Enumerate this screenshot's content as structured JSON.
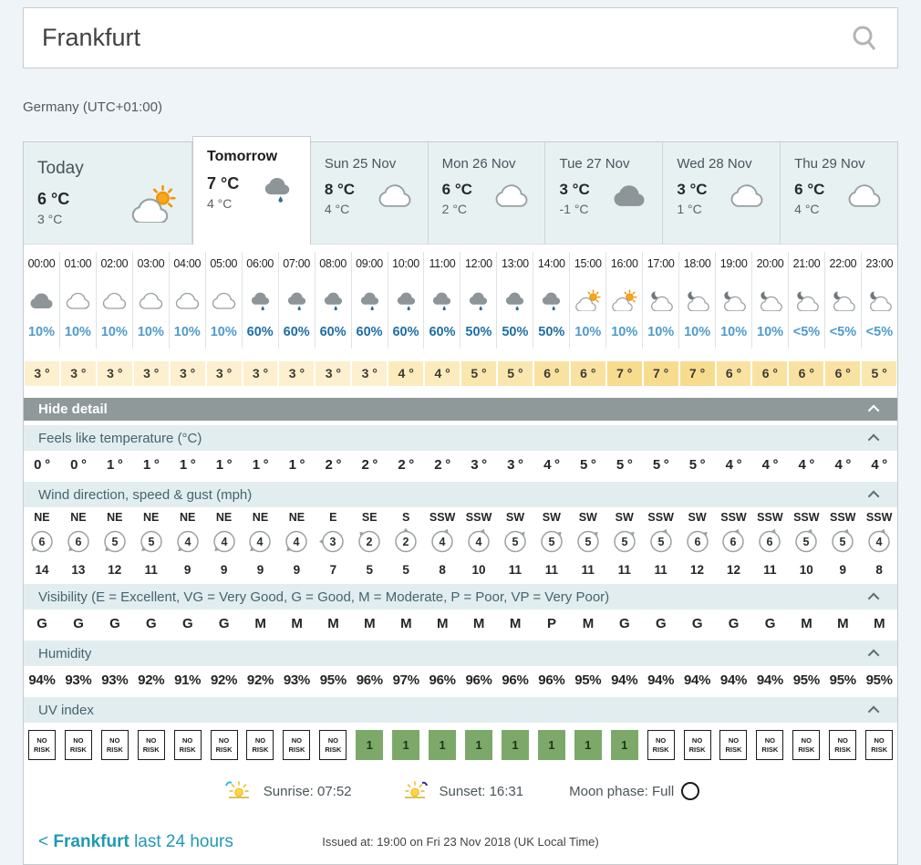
{
  "search": {
    "value": "Frankfurt"
  },
  "location_meta": "Germany (UTC+01:00)",
  "day_tabs": [
    {
      "label": "Today",
      "high": "6 °C",
      "low": "3 °C",
      "icon": "sunny-intervals",
      "selected": false
    },
    {
      "label": "Tomorrow",
      "high": "7 °C",
      "low": "4 °C",
      "icon": "light-rain",
      "selected": true
    },
    {
      "label": "Sun 25 Nov",
      "high": "8 °C",
      "low": "4 °C",
      "icon": "cloud-white",
      "selected": false
    },
    {
      "label": "Mon 26 Nov",
      "high": "6 °C",
      "low": "2 °C",
      "icon": "cloud-white",
      "selected": false
    },
    {
      "label": "Tue 27 Nov",
      "high": "3 °C",
      "low": "-1 °C",
      "icon": "cloud-grey",
      "selected": false
    },
    {
      "label": "Wed 28 Nov",
      "high": "3 °C",
      "low": "1 °C",
      "icon": "cloud-white",
      "selected": false
    },
    {
      "label": "Thu 29 Nov",
      "high": "6 °C",
      "low": "4 °C",
      "icon": "cloud-white",
      "selected": false
    }
  ],
  "hourly": {
    "times": [
      "00:00",
      "01:00",
      "02:00",
      "03:00",
      "04:00",
      "05:00",
      "06:00",
      "07:00",
      "08:00",
      "09:00",
      "10:00",
      "11:00",
      "12:00",
      "13:00",
      "14:00",
      "15:00",
      "16:00",
      "17:00",
      "18:00",
      "19:00",
      "20:00",
      "21:00",
      "22:00",
      "23:00"
    ],
    "icons": [
      "cloud-grey",
      "cloud-white",
      "cloud-white",
      "cloud-white",
      "cloud-white",
      "cloud-white",
      "light-rain",
      "light-rain",
      "light-rain",
      "light-rain",
      "light-rain",
      "light-rain",
      "light-rain",
      "light-rain",
      "light-rain",
      "sunny-intervals",
      "sunny-intervals",
      "night-cloud",
      "night-cloud",
      "night-cloud",
      "night-cloud",
      "night-cloud",
      "night-cloud",
      "night-cloud"
    ],
    "precip": [
      "10%",
      "10%",
      "10%",
      "10%",
      "10%",
      "10%",
      "60%",
      "60%",
      "60%",
      "60%",
      "60%",
      "60%",
      "50%",
      "50%",
      "50%",
      "10%",
      "10%",
      "10%",
      "10%",
      "10%",
      "10%",
      "<5%",
      "<5%",
      "<5%"
    ],
    "temps": [
      "3 °",
      "3 °",
      "3 °",
      "3 °",
      "3 °",
      "3 °",
      "3 °",
      "3 °",
      "3 °",
      "3 °",
      "4 °",
      "4 °",
      "5 °",
      "5 °",
      "6 °",
      "6 °",
      "7 °",
      "7 °",
      "7 °",
      "6 °",
      "6 °",
      "6 °",
      "6 °",
      "5 °"
    ]
  },
  "detail": {
    "toggle_label": "Hide detail",
    "feels_like": {
      "label": "Feels like temperature (°C)",
      "values": [
        "0 °",
        "0 °",
        "1 °",
        "1 °",
        "1 °",
        "1 °",
        "1 °",
        "1 °",
        "2 °",
        "2 °",
        "2 °",
        "2 °",
        "3 °",
        "3 °",
        "4 °",
        "5 °",
        "5 °",
        "5 °",
        "5 °",
        "4 °",
        "4 °",
        "4 °",
        "4 °",
        "4 °"
      ]
    },
    "wind": {
      "label": "Wind direction, speed & gust (mph)",
      "directions": [
        "NE",
        "NE",
        "NE",
        "NE",
        "NE",
        "NE",
        "NE",
        "NE",
        "E",
        "SE",
        "S",
        "SSW",
        "SSW",
        "SW",
        "SW",
        "SW",
        "SW",
        "SSW",
        "SW",
        "SSW",
        "SSW",
        "SSW",
        "SSW",
        "SSW"
      ],
      "speeds": [
        6,
        6,
        5,
        5,
        4,
        4,
        4,
        4,
        3,
        2,
        2,
        4,
        4,
        5,
        5,
        5,
        5,
        5,
        6,
        6,
        6,
        5,
        5,
        4
      ],
      "gusts": [
        14,
        13,
        12,
        11,
        9,
        9,
        9,
        9,
        7,
        5,
        5,
        8,
        10,
        11,
        11,
        11,
        11,
        11,
        12,
        12,
        11,
        10,
        9,
        8
      ]
    },
    "visibility": {
      "label": "Visibility (E = Excellent, VG = Very Good, G = Good, M = Moderate, P = Poor, VP = Very Poor)",
      "values": [
        "G",
        "G",
        "G",
        "G",
        "G",
        "G",
        "M",
        "M",
        "M",
        "M",
        "M",
        "M",
        "M",
        "M",
        "P",
        "M",
        "G",
        "G",
        "G",
        "G",
        "G",
        "M",
        "M",
        "M"
      ]
    },
    "humidity": {
      "label": "Humidity",
      "values": [
        "94%",
        "93%",
        "93%",
        "92%",
        "91%",
        "92%",
        "92%",
        "93%",
        "95%",
        "96%",
        "97%",
        "96%",
        "96%",
        "96%",
        "96%",
        "95%",
        "94%",
        "94%",
        "94%",
        "94%",
        "94%",
        "95%",
        "95%",
        "95%"
      ]
    },
    "uv": {
      "label": "UV index",
      "values": [
        "NO RISK",
        "NO RISK",
        "NO RISK",
        "NO RISK",
        "NO RISK",
        "NO RISK",
        "NO RISK",
        "NO RISK",
        "NO RISK",
        "1",
        "1",
        "1",
        "1",
        "1",
        "1",
        "1",
        "1",
        "NO RISK",
        "NO RISK",
        "NO RISK",
        "NO RISK",
        "NO RISK",
        "NO RISK",
        "NO RISK"
      ]
    }
  },
  "astronomy": {
    "sunrise": "Sunrise: 07:52",
    "sunset": "Sunset: 16:31",
    "moon": "Moon phase: Full"
  },
  "footer": {
    "back": "<",
    "location": "Frankfurt",
    "suffix": "last 24 hours",
    "issued": "Issued at: 19:00 on Fri 23 Nov 2018  (UK Local Time)"
  },
  "colors": {
    "accent": "#2099b4",
    "uv_green": "#7ca96a",
    "precip_strong": "#1d6ea6",
    "precip_light": "#4e9bcd",
    "temp_scale": {
      "3": "#fdf0cf",
      "4": "#fcebbd",
      "5": "#fae7b0",
      "6": "#f9e2a1",
      "7": "#f7dc8f"
    }
  }
}
